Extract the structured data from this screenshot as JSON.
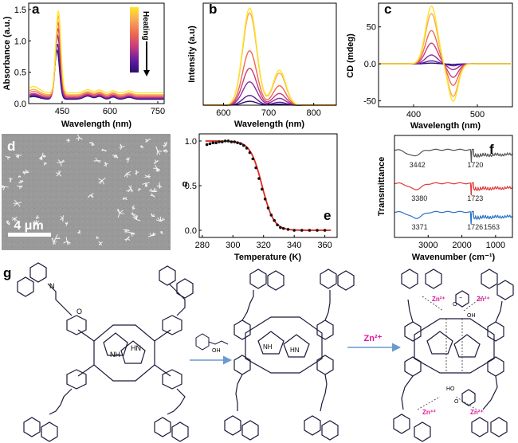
{
  "panels": {
    "a": {
      "label": "a"
    },
    "b": {
      "label": "b"
    },
    "c": {
      "label": "c"
    },
    "d": {
      "label": "d",
      "scale_bar": "4 μm"
    },
    "e": {
      "label": "e"
    },
    "f": {
      "label": "f"
    },
    "g": {
      "label": "g",
      "reagent_arrow2": "Zn²⁺",
      "zinc_label": "Zn²⁺",
      "zinc_label_alt": "Zn⁺²",
      "oh_label": "OH",
      "o_label": "O",
      "nh_label": "NH",
      "hn_label": "HN",
      "n_label": "N",
      "ho_label": "HO",
      "minus_label": "−"
    }
  },
  "colors": {
    "heating_scale": [
      "#fde725",
      "#f9a65a",
      "#ef6a4d",
      "#c93d7b",
      "#8f2d9c",
      "#5a1a9e",
      "#2a0f6e"
    ],
    "panel_e_fit": "#e8251f",
    "panel_f_series": [
      "#555555",
      "#e03c3c",
      "#2a74c9"
    ],
    "zinc_text": "#e0179b"
  },
  "chart_data": [
    {
      "panel": "a",
      "type": "line",
      "xlabel": "Wavelength (nm)",
      "ylabel": "Absorbance (a.u.)",
      "xlim": [
        345,
        770
      ],
      "ylim": [
        0,
        1.6
      ],
      "xticks": [
        450,
        600,
        750
      ],
      "yticks": [
        0.0,
        0.5,
        1.0,
        1.5
      ],
      "legend": {
        "title": "Heating",
        "placement": "top-right"
      },
      "series": [
        {
          "peak_x": 434,
          "peak_y": 0.85,
          "base_y": 0.07
        },
        {
          "peak_x": 435,
          "peak_y": 0.95,
          "base_y": 0.08
        },
        {
          "peak_x": 436,
          "peak_y": 1.08,
          "base_y": 0.09
        },
        {
          "peak_x": 437,
          "peak_y": 1.2,
          "base_y": 0.1
        },
        {
          "peak_x": 437,
          "peak_y": 1.3,
          "base_y": 0.12
        },
        {
          "peak_x": 438,
          "peak_y": 1.4,
          "base_y": 0.14
        },
        {
          "peak_x": 438,
          "peak_y": 1.48,
          "base_y": 0.17
        }
      ]
    },
    {
      "panel": "b",
      "type": "line",
      "xlabel": "Wavelength (nm)",
      "ylabel": "Intensity (a.u)",
      "xlim": [
        555,
        850
      ],
      "ylim": [
        0,
        1.05
      ],
      "xticks": [
        600,
        700,
        800
      ],
      "yticks": [],
      "series": [
        {
          "peak1": 0.04,
          "peak2": 0.01
        },
        {
          "peak1": 0.1,
          "peak2": 0.03
        },
        {
          "peak1": 0.24,
          "peak2": 0.07
        },
        {
          "peak1": 0.38,
          "peak2": 0.12
        },
        {
          "peak1": 0.56,
          "peak2": 0.2
        },
        {
          "peak1": 0.95,
          "peak2": 0.33
        },
        {
          "peak1": 1.0,
          "peak2": 0.36
        }
      ]
    },
    {
      "panel": "c",
      "type": "line",
      "xlabel": "Wavelength (nm)",
      "ylabel": "CD (mdeg)",
      "xlim": [
        345,
        555
      ],
      "ylim": [
        -58,
        82
      ],
      "xticks": [
        400,
        500
      ],
      "yticks": [
        -50,
        0,
        50
      ],
      "series": [
        {
          "amplitude": 1
        },
        {
          "amplitude": 4
        },
        {
          "amplitude": 12
        },
        {
          "amplitude": 28
        },
        {
          "amplitude": 45
        },
        {
          "amplitude": 68
        },
        {
          "amplitude": 78
        }
      ]
    },
    {
      "panel": "e",
      "type": "scatter",
      "xlabel": "Temperature (K)",
      "ylabel": "α",
      "xlim": [
        278,
        368
      ],
      "ylim": [
        -0.08,
        1.08
      ],
      "xticks": [
        280,
        300,
        320,
        340,
        360
      ],
      "yticks": [
        0.0,
        0.5,
        1.0
      ],
      "points": [
        {
          "x": 283,
          "y": 0.96
        },
        {
          "x": 285,
          "y": 0.97
        },
        {
          "x": 287,
          "y": 0.98
        },
        {
          "x": 289,
          "y": 0.98
        },
        {
          "x": 291,
          "y": 0.99
        },
        {
          "x": 293,
          "y": 0.99
        },
        {
          "x": 295,
          "y": 1.0
        },
        {
          "x": 297,
          "y": 1.0
        },
        {
          "x": 299,
          "y": 0.99
        },
        {
          "x": 301,
          "y": 0.99
        },
        {
          "x": 303,
          "y": 0.98
        },
        {
          "x": 305,
          "y": 0.97
        },
        {
          "x": 307,
          "y": 0.95
        },
        {
          "x": 309,
          "y": 0.92
        },
        {
          "x": 311,
          "y": 0.87
        },
        {
          "x": 313,
          "y": 0.8
        },
        {
          "x": 315,
          "y": 0.7
        },
        {
          "x": 317,
          "y": 0.58
        },
        {
          "x": 319,
          "y": 0.46
        },
        {
          "x": 321,
          "y": 0.35
        },
        {
          "x": 323,
          "y": 0.25
        },
        {
          "x": 325,
          "y": 0.17
        },
        {
          "x": 327,
          "y": 0.11
        },
        {
          "x": 329,
          "y": 0.06
        },
        {
          "x": 331,
          "y": 0.03
        },
        {
          "x": 333,
          "y": 0.02
        },
        {
          "x": 336,
          "y": 0.01
        },
        {
          "x": 340,
          "y": 0.0
        },
        {
          "x": 345,
          "y": 0.0
        },
        {
          "x": 350,
          "y": 0.0
        },
        {
          "x": 355,
          "y": 0.0
        },
        {
          "x": 360,
          "y": 0.0
        }
      ],
      "fit": {
        "midpoint": 319,
        "width": 3.8
      }
    },
    {
      "panel": "f",
      "type": "line",
      "xlabel": "Wavenumber (cm⁻¹)",
      "ylabel": "Transmittance",
      "xlim": [
        4000,
        500
      ],
      "xticks": [
        3000,
        2000,
        1000
      ],
      "yticks": [],
      "series": [
        {
          "annotations": [
            {
              "x": 3442,
              "text": "3442"
            },
            {
              "x": 1720,
              "text": "1720"
            }
          ]
        },
        {
          "annotations": [
            {
              "x": 3380,
              "text": "3380"
            },
            {
              "x": 1723,
              "text": "1723"
            }
          ]
        },
        {
          "annotations": [
            {
              "x": 3371,
              "text": "3371"
            },
            {
              "x": 1726,
              "text": "1726"
            },
            {
              "x": 1563,
              "text": "1563"
            }
          ]
        }
      ]
    }
  ]
}
